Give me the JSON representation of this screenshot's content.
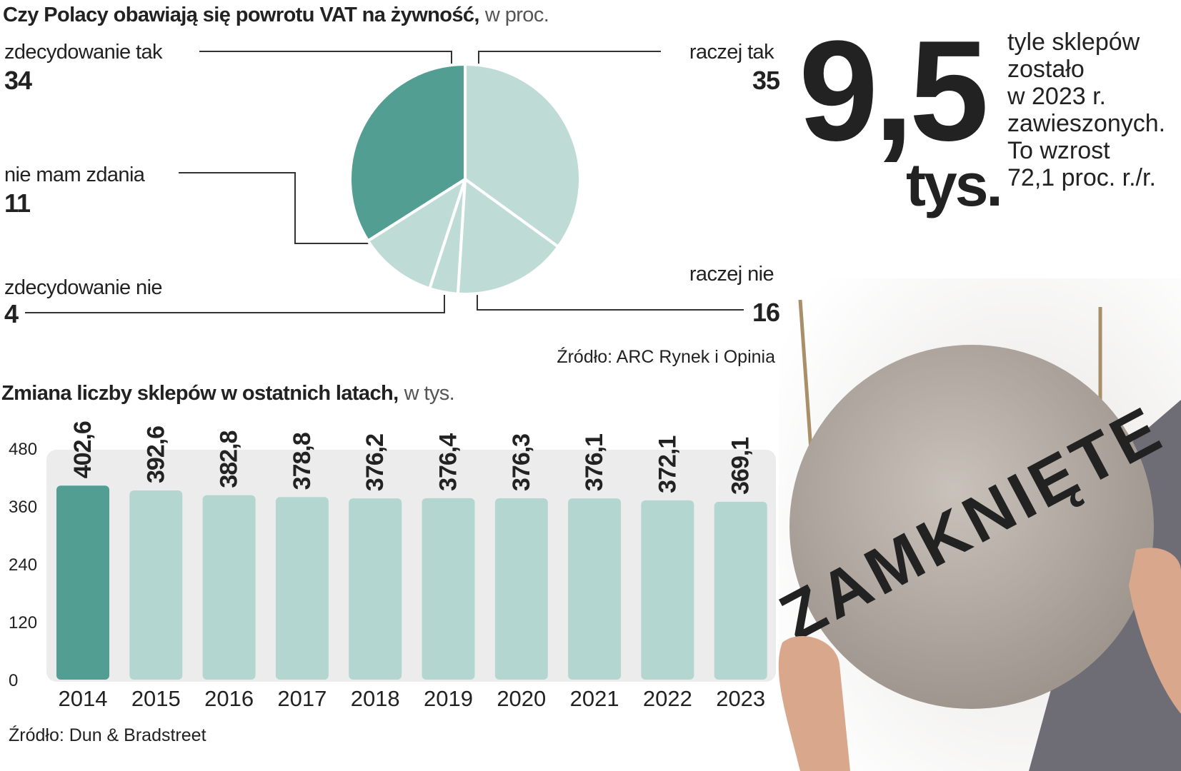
{
  "chart_data": [
    {
      "type": "pie",
      "title": "Czy Polacy obawiają się powrotu VAT na żywność,",
      "unit": "w proc.",
      "categories": [
        "raczej tak",
        "raczej nie",
        "zdecydowanie nie",
        "nie mam zdania",
        "zdecydowanie tak"
      ],
      "values": [
        35,
        16,
        4,
        11,
        34
      ],
      "colors": [
        "#bfdbd6",
        "#bfdbd6",
        "#bfdbd6",
        "#bfdbd6",
        "#529e93"
      ],
      "source": "Źródło: ARC Rynek i Opinia"
    },
    {
      "type": "bar",
      "title": "Zmiana liczby sklepów w ostatnich latach,",
      "unit": "w tys.",
      "categories": [
        "2014",
        "2015",
        "2016",
        "2017",
        "2018",
        "2019",
        "2020",
        "2021",
        "2022",
        "2023"
      ],
      "values": [
        402.6,
        392.6,
        382.8,
        378.8,
        376.2,
        376.4,
        376.3,
        376.1,
        372.1,
        369.1
      ],
      "value_labels": [
        "402,6",
        "392,6",
        "382,8",
        "378,8",
        "376,2",
        "376,4",
        "376,3",
        "376,1",
        "372,1",
        "369,1"
      ],
      "colors": [
        "#529e93",
        "#b4d6d1",
        "#b4d6d1",
        "#b4d6d1",
        "#b4d6d1",
        "#b4d6d1",
        "#b4d6d1",
        "#b4d6d1",
        "#b4d6d1",
        "#b4d6d1"
      ],
      "ylim": [
        0,
        480
      ],
      "yticks": [
        0,
        120,
        240,
        360,
        480
      ],
      "grid": false,
      "source": "Źródło: Dun & Bradstreet"
    }
  ],
  "callout": {
    "number": "9,5",
    "unit": "tys.",
    "lines": [
      "tyle sklepów",
      "zostało",
      "w 2023 r.",
      "zawieszonych.",
      "To wzrost",
      "72,1 proc. r./r."
    ]
  },
  "photo": {
    "sign_text": "ZAMKNIĘTE"
  }
}
